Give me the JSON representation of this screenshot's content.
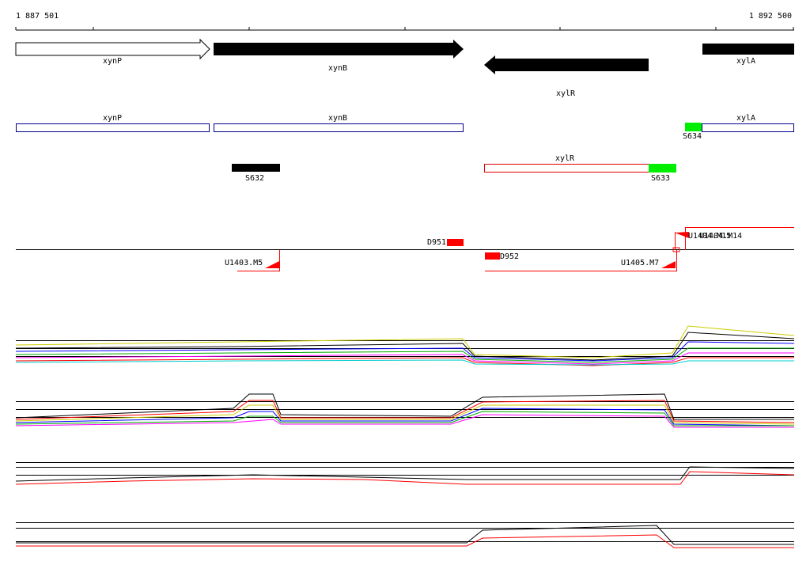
{
  "axis": {
    "start": "1 887 501",
    "end": "1 892 500"
  },
  "genes": [
    "xynP",
    "xynB",
    "xylR",
    "xylA"
  ],
  "annotations": [
    "xynP",
    "xynB",
    "xylA",
    "S634",
    "xylR",
    "S633",
    "S632"
  ],
  "probes": [
    "D951",
    "D952",
    "U1403.M5",
    "U1405.M7",
    "U1404.M15",
    "U1404.M14"
  ]
}
